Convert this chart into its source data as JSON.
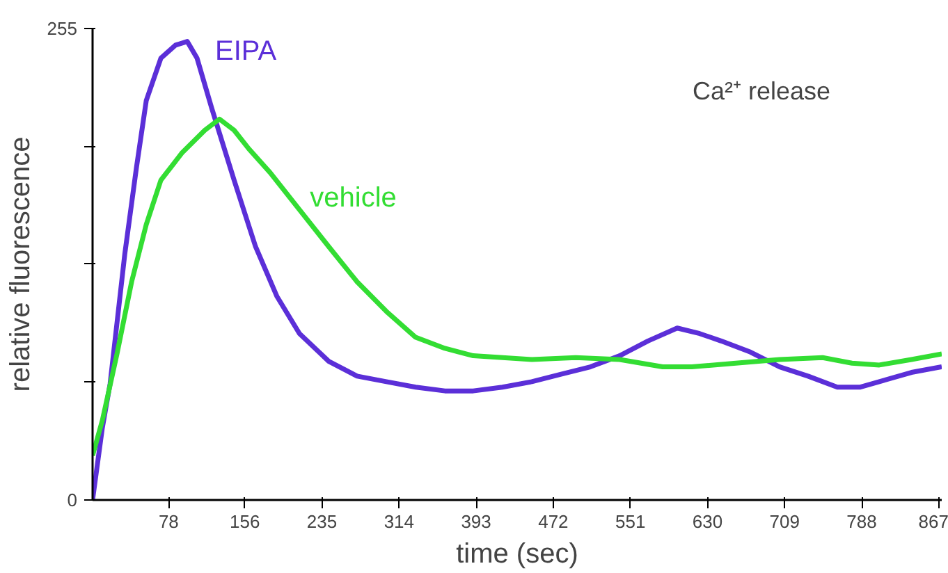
{
  "chart_data": {
    "type": "line",
    "xlabel": "time (sec)",
    "ylabel": "relative fluorescence",
    "annotations": [
      "Ca²⁺ release"
    ],
    "xlim": [
      0,
      870
    ],
    "ylim": [
      0,
      255
    ],
    "xticks": [
      78,
      156,
      235,
      314,
      393,
      472,
      551,
      630,
      709,
      788,
      867
    ],
    "yticks": [
      0,
      {
        "value": 64,
        "label": null
      },
      {
        "value": 128,
        "label": null
      },
      {
        "value": 191,
        "label": null
      },
      255
    ],
    "grid": false,
    "legend": false,
    "line_style": "solid",
    "series": [
      {
        "name": "EIPA",
        "color": "#5b2fd8",
        "x": [
          0,
          10,
          18,
          33,
          45,
          55,
          70,
          85,
          97,
          107,
          122,
          145,
          167,
          189,
          212,
          242,
          271,
          301,
          331,
          361,
          390,
          420,
          450,
          480,
          510,
          540,
          569,
          599,
          622,
          644,
          674,
          704,
          733,
          763,
          786,
          806,
          839,
          870
        ],
        "values": [
          0,
          39,
          63,
          133,
          180,
          216,
          239,
          246,
          248,
          239,
          212,
          173,
          137,
          110,
          90,
          75,
          67,
          64,
          61,
          59,
          59,
          61,
          64,
          68,
          72,
          78,
          86,
          93,
          90,
          86,
          80,
          72,
          67,
          61,
          61,
          64,
          69,
          72
        ]
      },
      {
        "name": "vehicle",
        "color": "#33dd33",
        "x": [
          0,
          10,
          25,
          40,
          55,
          70,
          92,
          115,
          130,
          145,
          160,
          182,
          212,
          242,
          271,
          301,
          331,
          361,
          390,
          420,
          450,
          495,
          540,
          562,
          584,
          614,
          659,
          704,
          748,
          778,
          806,
          839,
          870
        ],
        "values": [
          24,
          43,
          79,
          118,
          149,
          173,
          188,
          200,
          206,
          200,
          190,
          177,
          157,
          137,
          118,
          102,
          88,
          82,
          78,
          77,
          76,
          77,
          76,
          74,
          72,
          72,
          74,
          76,
          77,
          74,
          73,
          76,
          79
        ]
      }
    ]
  }
}
